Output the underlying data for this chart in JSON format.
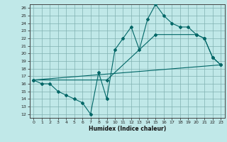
{
  "title": "",
  "xlabel": "Humidex (Indice chaleur)",
  "bg_color": "#c0e8e8",
  "grid_color": "#80b0b0",
  "line_color": "#006666",
  "xlim": [
    -0.5,
    23.5
  ],
  "ylim": [
    11.5,
    26.5
  ],
  "yticks": [
    12,
    13,
    14,
    15,
    16,
    17,
    18,
    19,
    20,
    21,
    22,
    23,
    24,
    25,
    26
  ],
  "xticks": [
    0,
    1,
    2,
    3,
    4,
    5,
    6,
    7,
    8,
    9,
    10,
    11,
    12,
    13,
    14,
    15,
    16,
    17,
    18,
    19,
    20,
    21,
    22,
    23
  ],
  "line1_x": [
    0,
    1,
    2,
    3,
    4,
    5,
    6,
    7,
    8,
    9,
    10,
    11,
    12,
    13,
    14,
    15,
    16,
    17,
    18,
    19,
    20,
    21,
    22,
    23
  ],
  "line1_y": [
    16.5,
    16.0,
    16.0,
    15.0,
    14.5,
    14.0,
    13.5,
    12.0,
    17.5,
    14.0,
    20.5,
    22.0,
    23.5,
    20.5,
    24.5,
    26.5,
    25.0,
    24.0,
    23.5,
    23.5,
    22.5,
    22.0,
    19.5,
    18.5
  ],
  "line2_x": [
    0,
    9,
    15,
    20,
    21,
    22,
    23
  ],
  "line2_y": [
    16.5,
    16.5,
    22.5,
    22.5,
    22.0,
    19.5,
    18.5
  ],
  "line3_x": [
    0,
    23
  ],
  "line3_y": [
    16.5,
    18.5
  ]
}
